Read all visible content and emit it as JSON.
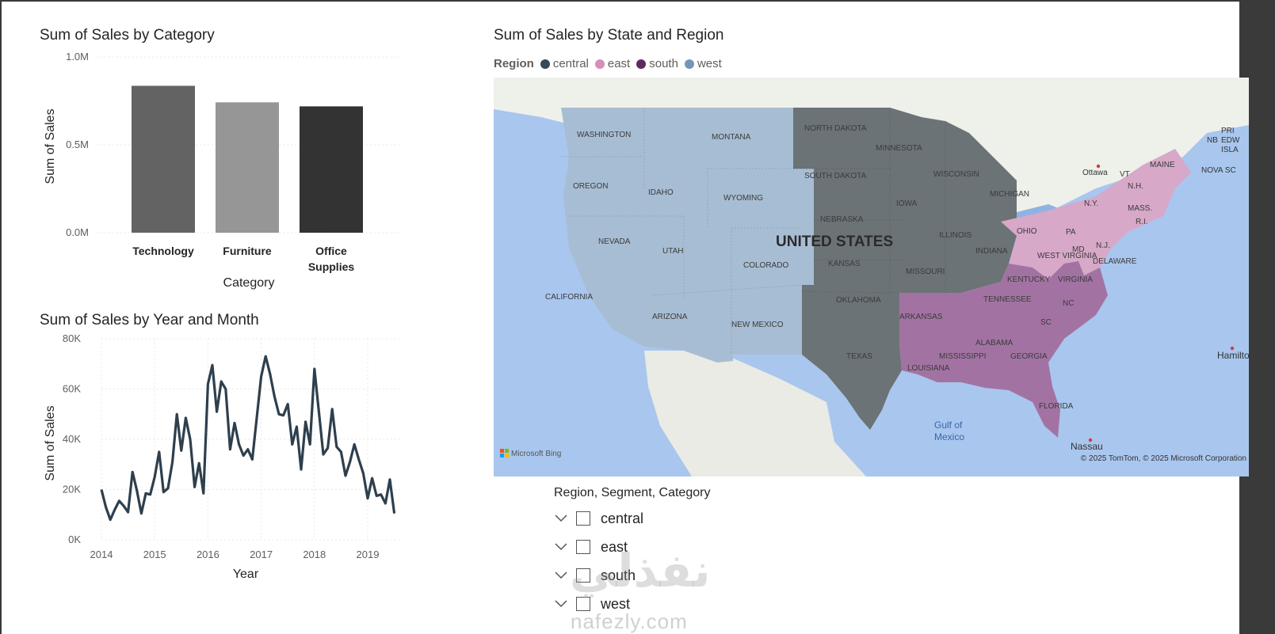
{
  "chart_data": [
    {
      "type": "bar",
      "title": "Sum of Sales by Category",
      "xlabel": "Category",
      "ylabel": "Sum of Sales",
      "categories": [
        "Technology",
        "Furniture",
        "Office Supplies"
      ],
      "values": [
        836000,
        742000,
        719000
      ],
      "ylim": [
        0,
        1000000
      ],
      "yticks": [
        "0.0M",
        "0.5M",
        "1.0M"
      ],
      "colors": [
        "#636363",
        "#969696",
        "#333333"
      ]
    },
    {
      "type": "line",
      "title": "Sum of Sales by Year and Month",
      "xlabel": "Year",
      "ylabel": "Sum of Sales",
      "ylim": [
        0,
        80000
      ],
      "yticks": [
        "0K",
        "20K",
        "40K",
        "60K",
        "80K"
      ],
      "xticks": [
        "2014",
        "2015",
        "2016",
        "2017",
        "2018",
        "2019"
      ],
      "series_color": "#2e3f4d",
      "x_start": "2014-01",
      "values": [
        20000,
        13000,
        8000,
        12000,
        15500,
        13500,
        11000,
        27000,
        19500,
        10500,
        18500,
        18000,
        25000,
        35000,
        19000,
        20500,
        31000,
        50000,
        35500,
        48500,
        40000,
        21000,
        30500,
        18500,
        62000,
        69500,
        51000,
        63000,
        60000,
        36000,
        46500,
        38000,
        33500,
        36000,
        32000,
        48500,
        65000,
        73000,
        66000,
        57000,
        50000,
        49500,
        54000,
        38000,
        45000,
        28000,
        47000,
        38000,
        68000,
        51000,
        34000,
        36500,
        52000,
        37000,
        35000,
        25500,
        31000,
        38000,
        32000,
        26500,
        16500,
        24500,
        17500,
        18000,
        14500,
        24000,
        10500
      ]
    },
    {
      "type": "map",
      "title": "Sum of Sales by State and Region",
      "legend_title": "Region",
      "regions": [
        {
          "name": "central",
          "color": "#34495a"
        },
        {
          "name": "east",
          "color": "#d68fb8"
        },
        {
          "name": "south",
          "color": "#5e2b5e"
        },
        {
          "name": "west",
          "color": "#7795b5"
        }
      ],
      "country_label": "UNITED STATES",
      "states": [
        "WASHINGTON",
        "OREGON",
        "IDAHO",
        "MONTANA",
        "WYOMING",
        "CALIFORNIA",
        "NEVADA",
        "UTAH",
        "COLORADO",
        "ARIZONA",
        "NEW MEXICO",
        "NORTH DAKOTA",
        "SOUTH DAKOTA",
        "NEBRASKA",
        "KANSAS",
        "OKLAHOMA",
        "TEXAS",
        "MINNESOTA",
        "IOWA",
        "MISSOURI",
        "WISCONSIN",
        "ILLINOIS",
        "MICHIGAN",
        "INDIANA",
        "OHIO",
        "KENTUCKY",
        "TENNESSEE",
        "ARKANSAS",
        "LOUISIANA",
        "MISSISSIPPI",
        "ALABAMA",
        "GEORGIA",
        "FLORIDA",
        "SC",
        "NC",
        "VIRGINIA",
        "WEST VIRGINIA",
        "PA",
        "N.Y.",
        "MD",
        "N.J.",
        "DELAWARE",
        "VT",
        "N.H.",
        "MASS.",
        "R.I.",
        "MAINE"
      ],
      "places": [
        "Ottawa",
        "NB",
        "PRI",
        "EDW",
        "ISLA",
        "NOVA SC",
        "Hamilto",
        "Nassau",
        "Gulf of",
        "Mexico"
      ],
      "attribution_left": "Microsoft Bing",
      "attribution_right": "© 2025 TomTom, © 2025 Microsoft Corporation"
    }
  ],
  "slicer": {
    "title": "Region, Segment, Category",
    "items": [
      "central",
      "east",
      "south",
      "west"
    ]
  },
  "watermark": {
    "arabic": "نفذلي",
    "latin": "nafezly.com"
  }
}
